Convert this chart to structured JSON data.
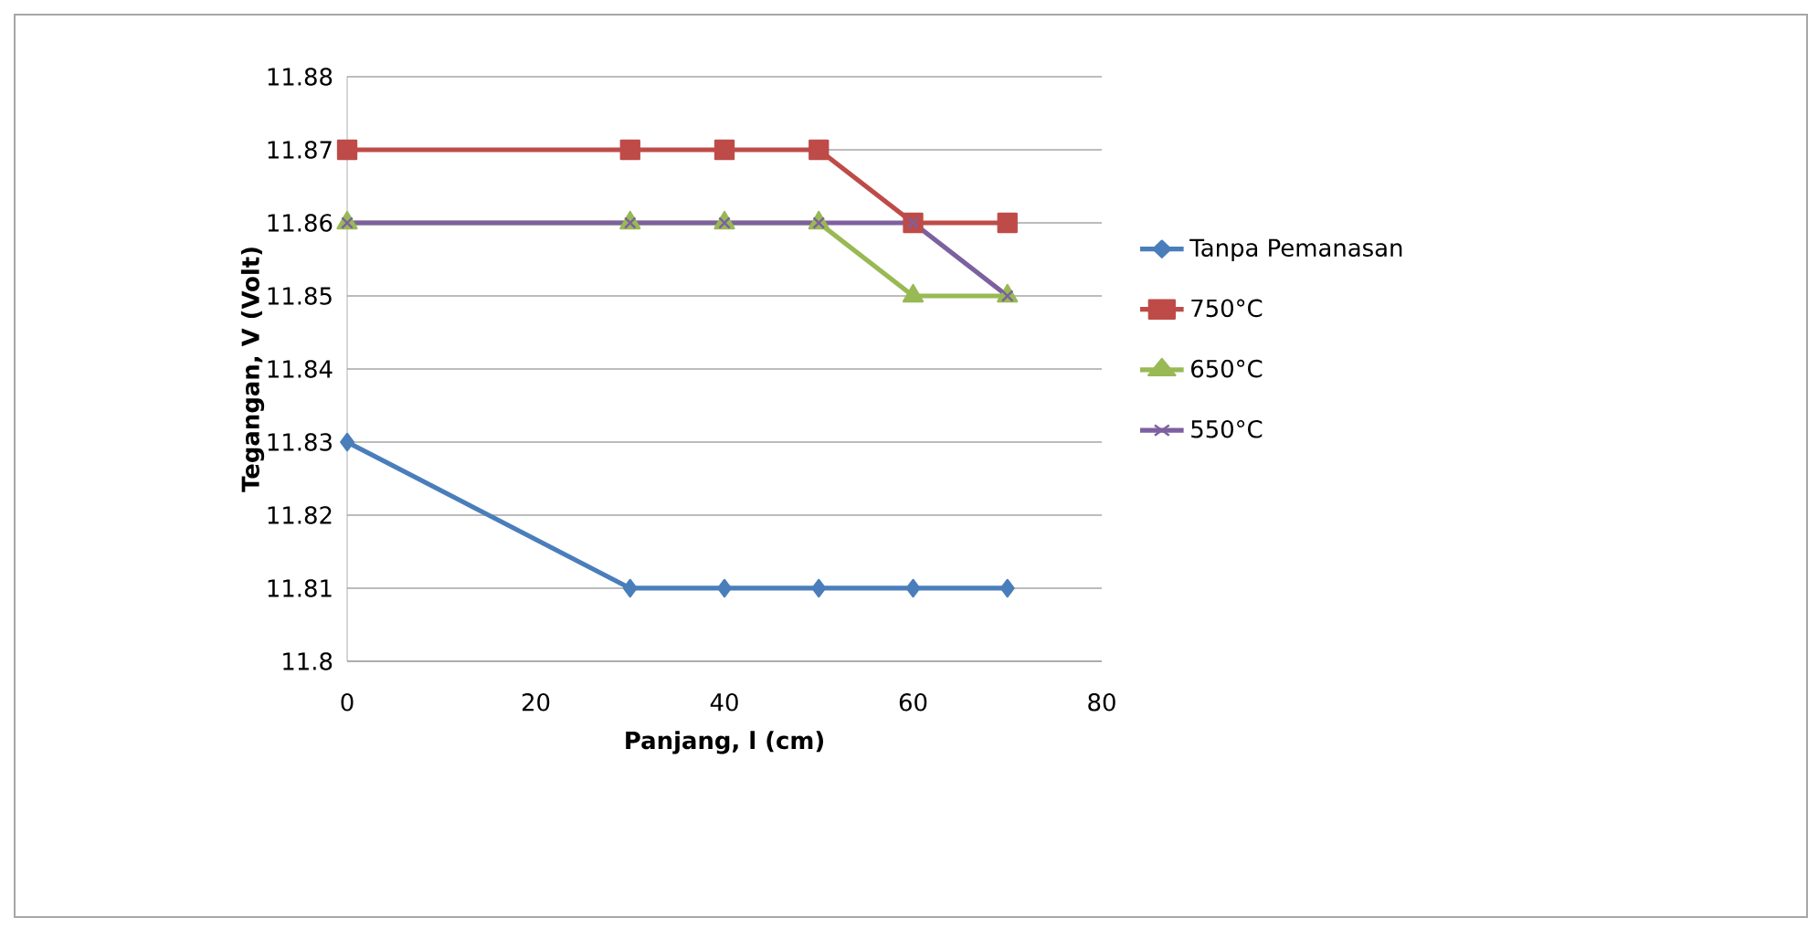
{
  "chart_data": {
    "type": "line",
    "xlabel": "Panjang,  l (cm)",
    "ylabel": "Tegangan, V (Volt)",
    "xlim": [
      0,
      80
    ],
    "xticks": [
      0,
      20,
      40,
      60,
      80
    ],
    "ylim": [
      11.8,
      11.88
    ],
    "yticks": [
      11.8,
      11.81,
      11.82,
      11.83,
      11.84,
      11.85,
      11.86,
      11.87,
      11.88
    ],
    "grid": "y",
    "legend": "right",
    "x": [
      0,
      30,
      40,
      50,
      60,
      70
    ],
    "series": [
      {
        "name": "Tanpa Pemanasan",
        "color": "#4a7ebb",
        "marker": "diamond",
        "values": [
          11.83,
          11.81,
          11.81,
          11.81,
          11.81,
          11.81
        ]
      },
      {
        "name": "750°C",
        "color": "#be4b48",
        "marker": "square",
        "values": [
          11.87,
          11.87,
          11.87,
          11.87,
          11.86,
          11.86
        ]
      },
      {
        "name": "650°C",
        "color": "#98b954",
        "marker": "triangle",
        "values": [
          11.86,
          11.86,
          11.86,
          11.86,
          11.85,
          11.85
        ]
      },
      {
        "name": "550°C",
        "color": "#7d60a0",
        "marker": "cross",
        "values": [
          11.86,
          11.86,
          11.86,
          11.86,
          11.86,
          11.85
        ]
      }
    ]
  }
}
